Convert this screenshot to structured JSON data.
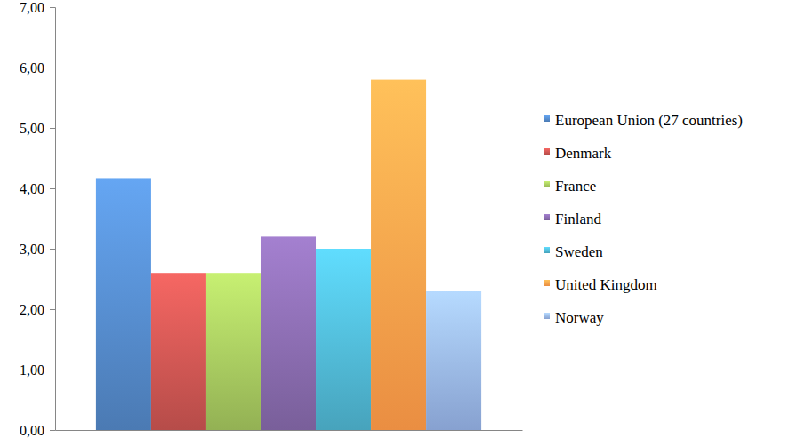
{
  "chart_data": {
    "type": "bar",
    "categories": [
      "European Union (27 countries)",
      "Denmark",
      "France",
      "Finland",
      "Sweden",
      "United Kingdom",
      "Norway"
    ],
    "values": [
      4.17,
      2.6,
      2.6,
      3.2,
      3.0,
      5.8,
      2.3
    ],
    "colors": [
      "#4f81bd",
      "#c0504d",
      "#9bbb59",
      "#8064a2",
      "#4bacc6",
      "#f79646",
      "#8eaadb"
    ],
    "ylim": [
      0,
      7
    ],
    "yticks": [
      {
        "value": 0,
        "label": "0,00"
      },
      {
        "value": 1,
        "label": "1,00"
      },
      {
        "value": 2,
        "label": "2,00"
      },
      {
        "value": 3,
        "label": "3,00"
      },
      {
        "value": 4,
        "label": "4,00"
      },
      {
        "value": 5,
        "label": "5,00"
      },
      {
        "value": 6,
        "label": "6,00"
      },
      {
        "value": 7,
        "label": "7,00"
      }
    ],
    "legend": "right",
    "tick_labels": "y",
    "grid": false
  }
}
